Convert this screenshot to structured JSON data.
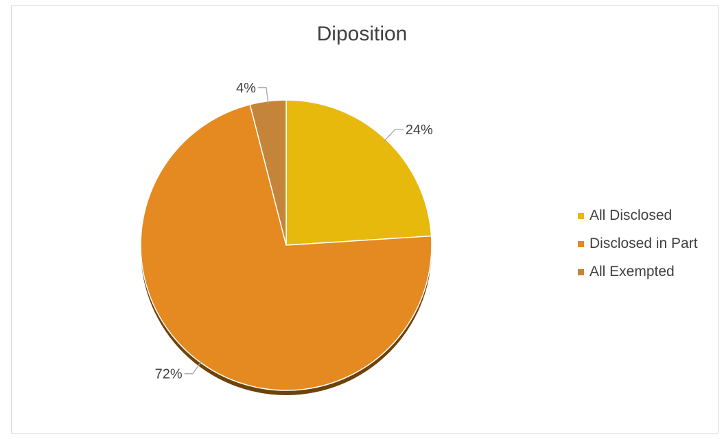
{
  "chart_data": {
    "type": "pie",
    "title": "Diposition",
    "categories": [
      "All Disclosed",
      "Disclosed in Part",
      "All Exempted"
    ],
    "values": [
      24,
      72,
      4
    ],
    "data_labels": [
      "24%",
      "72%",
      "4%"
    ],
    "colors": [
      "#e8b90d",
      "#e58a20",
      "#c4853a"
    ],
    "shadow_color": "#6e4208",
    "legend_position": "right"
  }
}
